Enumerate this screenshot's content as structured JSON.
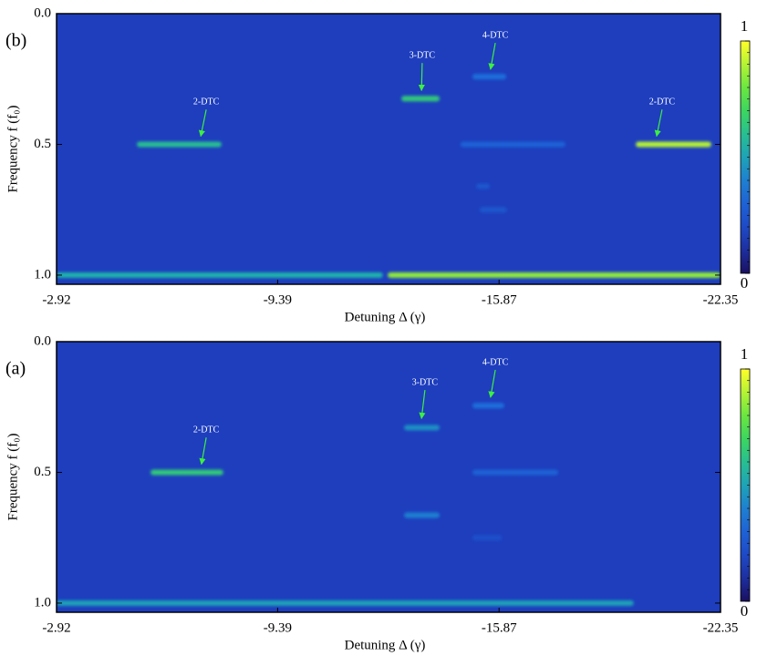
{
  "chart_data": [
    {
      "type": "heatmap",
      "panel_label": "(b)",
      "xlabel": "Detuning Δ (γ)",
      "ylabel": "Frequency f (f₀)",
      "xlim": [
        -2.92,
        -22.35
      ],
      "xticks": [
        -2.92,
        -9.39,
        -15.87,
        -22.35
      ],
      "ylim": [
        0,
        1.035
      ],
      "y_inverted": true,
      "yticks": [
        {
          "value": 0,
          "label": "0.0"
        },
        {
          "value": 0.5,
          "label": "0.5"
        },
        {
          "value": 1,
          "label": "1.0"
        }
      ],
      "colorbar": {
        "clim": [
          0,
          1
        ],
        "ticks": [
          0,
          1
        ]
      },
      "background": 0.15,
      "streaks": [
        {
          "x": [
            -5.27,
            -7.75
          ],
          "y": 0.5,
          "value": 0.6
        },
        {
          "x": [
            -13.01,
            -14.13
          ],
          "y": 0.325,
          "value": 0.65
        },
        {
          "x": [
            -15.09,
            -16.08
          ],
          "y": 0.241,
          "value": 0.35
        },
        {
          "x": [
            -14.74,
            -17.81
          ],
          "y": 0.5,
          "value": 0.3
        },
        {
          "x": [
            -19.87,
            -22.08
          ],
          "y": 0.5,
          "value": 0.9
        },
        {
          "x": [
            -15.2,
            -15.6
          ],
          "y": 0.66,
          "value": 0.25
        },
        {
          "x": [
            -15.3,
            -16.1
          ],
          "y": 0.75,
          "value": 0.25
        },
        {
          "x": [
            -2.92,
            -12.47
          ],
          "y": 1,
          "value": 0.55
        },
        {
          "x": [
            -12.61,
            -22.35
          ],
          "y": 1,
          "value": 0.85
        }
      ],
      "annotations": [
        {
          "text": "2-DTC",
          "x": -7.3,
          "y": 0.339,
          "tip": [
            -7.14,
            0.469
          ]
        },
        {
          "text": "3-DTC",
          "x": -13.62,
          "y": 0.161,
          "tip": [
            -13.6,
            0.294
          ]
        },
        {
          "text": "4-DTC",
          "x": -15.76,
          "y": 0.084,
          "tip": [
            -15.62,
            0.213
          ]
        },
        {
          "text": "2-DTC",
          "x": -20.64,
          "y": 0.339,
          "tip": [
            -20.48,
            0.469
          ]
        }
      ]
    },
    {
      "type": "heatmap",
      "panel_label": "(a)",
      "xlabel": "Detuning Δ (γ)",
      "ylabel": "Frequency f (f₀)",
      "xlim": [
        -2.92,
        -22.35
      ],
      "xticks": [
        -2.92,
        -9.39,
        -15.87,
        -22.35
      ],
      "ylim": [
        0,
        1.035
      ],
      "y_inverted": true,
      "yticks": [
        {
          "value": 0,
          "label": "0.0"
        },
        {
          "value": 0.5,
          "label": "0.5"
        },
        {
          "value": 1,
          "label": "1.0"
        }
      ],
      "colorbar": {
        "clim": [
          0,
          1
        ],
        "ticks": [
          0,
          1
        ]
      },
      "background": 0.15,
      "streaks": [
        {
          "x": [
            -5.67,
            -7.8
          ],
          "y": 0.5,
          "value": 0.65
        },
        {
          "x": [
            -13.09,
            -14.13
          ],
          "y": 0.329,
          "value": 0.45
        },
        {
          "x": [
            -13.09,
            -14.13
          ],
          "y": 0.664,
          "value": 0.4
        },
        {
          "x": [
            -15.09,
            -16.02
          ],
          "y": 0.245,
          "value": 0.35
        },
        {
          "x": [
            -15.09,
            -17.6
          ],
          "y": 0.5,
          "value": 0.3
        },
        {
          "x": [
            -15.09,
            -15.95
          ],
          "y": 0.75,
          "value": 0.22
        },
        {
          "x": [
            -2.92,
            -19.81
          ],
          "y": 1,
          "value": 0.5
        }
      ],
      "annotations": [
        {
          "text": "2-DTC",
          "x": -7.3,
          "y": 0.339,
          "tip": [
            -7.16,
            0.469
          ]
        },
        {
          "text": "3-DTC",
          "x": -13.7,
          "y": 0.157,
          "tip": [
            -13.6,
            0.294
          ]
        },
        {
          "text": "4-DTC",
          "x": -15.76,
          "y": 0.08,
          "tip": [
            -15.62,
            0.213
          ]
        }
      ]
    }
  ]
}
